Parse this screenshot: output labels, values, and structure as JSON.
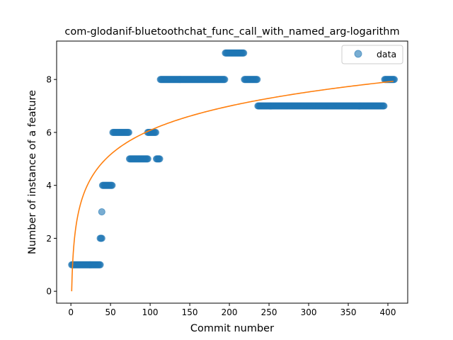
{
  "chart_data": {
    "type": "scatter",
    "title": "com-glodanif-bluetoothchat_func_call_with_named_arg-logarithm",
    "xlabel": "Commit number",
    "ylabel": "Number of instance of a feature",
    "xlim": [
      -18,
      425
    ],
    "ylim": [
      -0.45,
      9.45
    ],
    "x_ticks": [
      0,
      50,
      100,
      150,
      200,
      250,
      300,
      350,
      400
    ],
    "y_ticks": [
      0,
      2,
      4,
      6,
      8
    ],
    "grid": false,
    "legend": {
      "position": "top-right",
      "entries": [
        "data"
      ]
    },
    "colors": {
      "data": "#1f77b4",
      "fit": "#ff7f0e"
    },
    "series": [
      {
        "name": "data",
        "kind": "scatter",
        "runs": [
          {
            "x_start": 1,
            "x_end": 37,
            "y": 1
          },
          {
            "x_start": 37,
            "x_end": 39,
            "y": 2
          },
          {
            "x_start": 39,
            "x_end": 39,
            "y": 3
          },
          {
            "x_start": 40,
            "x_end": 52,
            "y": 4
          },
          {
            "x_start": 53,
            "x_end": 73,
            "y": 6
          },
          {
            "x_start": 74,
            "x_end": 97,
            "y": 5
          },
          {
            "x_start": 97,
            "x_end": 107,
            "y": 6
          },
          {
            "x_start": 108,
            "x_end": 112,
            "y": 5
          },
          {
            "x_start": 113,
            "x_end": 194,
            "y": 8
          },
          {
            "x_start": 195,
            "x_end": 218,
            "y": 9
          },
          {
            "x_start": 219,
            "x_end": 235,
            "y": 8
          },
          {
            "x_start": 236,
            "x_end": 395,
            "y": 7
          },
          {
            "x_start": 396,
            "x_end": 408,
            "y": 8
          }
        ]
      },
      {
        "kind": "line",
        "function": "y = a*ln(x) + b",
        "a": 1.32,
        "b": 0.0,
        "x_range": [
          1,
          407
        ]
      }
    ]
  }
}
